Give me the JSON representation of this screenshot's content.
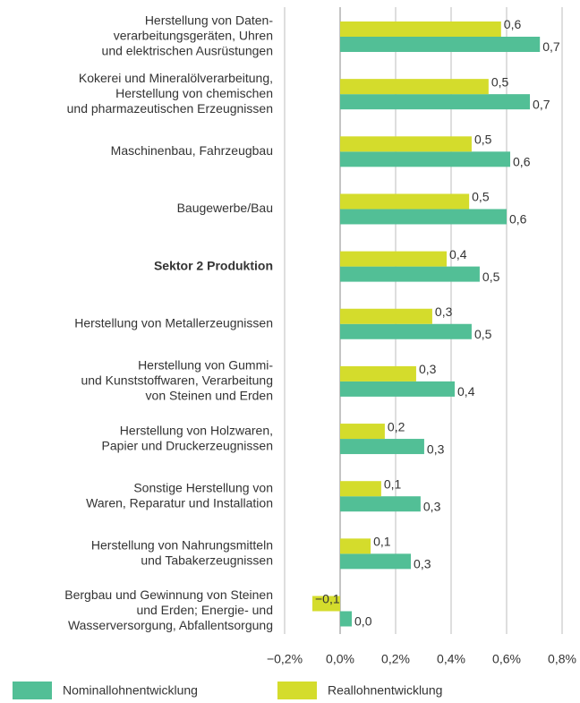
{
  "chart_data": {
    "type": "hbar",
    "categories": [
      [
        "Herstellung von Daten-",
        "verarbeitungsgeräten, Uhren",
        "und elektrischen Ausrüstungen"
      ],
      [
        "Kokerei und Mineralölverarbeitung,",
        "Herstellung von chemischen",
        "und pharmazeutischen Erzeugnissen"
      ],
      [
        "Maschinenbau, Fahrzeugbau"
      ],
      [
        "Baugewerbe/Bau"
      ],
      [
        "Sektor 2 Produktion"
      ],
      [
        "Herstellung von Metallerzeugnissen"
      ],
      [
        "Herstellung von Gummi-",
        "und Kunststoffwaren, Verarbeitung",
        "von Steinen und Erden"
      ],
      [
        "Herstellung von Holzwaren,",
        "Papier und Druckerzeugnissen"
      ],
      [
        "Sonstige Herstellung von",
        "Waren, Reparatur und Installation"
      ],
      [
        "Herstellung von Nahrungsmitteln",
        "und Tabakerzeugnissen"
      ],
      [
        "Bergbau und Gewinnung von Steinen",
        "und Erden; Energie- und",
        "Wasserversorgung, Abfallentsorgung"
      ]
    ],
    "highlight_category": 4,
    "series": [
      {
        "name": "Nominallohnentwicklung",
        "color": "#52bf96",
        "values": [
          0.72,
          0.684,
          0.613,
          0.6,
          0.503,
          0.474,
          0.413,
          0.303,
          0.29,
          0.255,
          0.042
        ],
        "value_labels": [
          "0,7",
          "0,7",
          "0,6",
          "0,6",
          "0,5",
          "0,5",
          "0,4",
          "0,3",
          "0,3",
          "0,3",
          "0,0"
        ]
      },
      {
        "name": "Reallohnentwicklung",
        "color": "#d4dc2c",
        "values": [
          0.58,
          0.535,
          0.474,
          0.465,
          0.384,
          0.332,
          0.274,
          0.161,
          0.148,
          0.11,
          -0.1
        ],
        "value_labels": [
          "0,6",
          "0,5",
          "0,5",
          "0,5",
          "0,4",
          "0,3",
          "0,3",
          "0,2",
          "0,1",
          "0,1",
          "−0,1"
        ]
      }
    ],
    "xlim": [
      -0.2,
      0.8
    ],
    "xticks": [
      {
        "value": -0.2,
        "label": "−0,2%"
      },
      {
        "value": 0,
        "label": "0,0%"
      },
      {
        "value": 0.2,
        "label": "0,2%"
      },
      {
        "value": 0.4,
        "label": "0,4%"
      },
      {
        "value": 0.6,
        "label": "0,6%"
      },
      {
        "value": 0.8,
        "label": "0,8%"
      }
    ],
    "grid": true
  }
}
